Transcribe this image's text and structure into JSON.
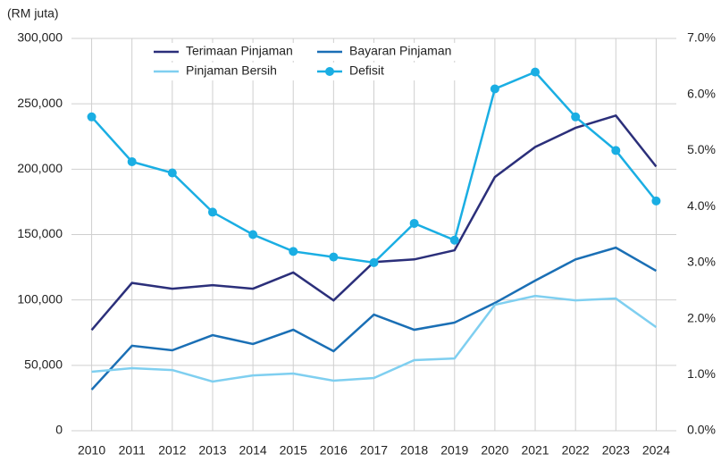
{
  "chart_data": {
    "type": "line",
    "y_label": "(RM juta)",
    "categories": [
      "2010",
      "2011",
      "2012",
      "2013",
      "2014",
      "2015",
      "2016",
      "2017",
      "2018",
      "2019",
      "2020",
      "2021",
      "2022",
      "2023",
      "2024"
    ],
    "ylim": [
      0,
      300000
    ],
    "yticks": [
      0,
      {
        "value": 50000,
        "label": "50,000"
      },
      {
        "value": 100000,
        "label": "100,000"
      },
      {
        "value": 150000,
        "label": "150,000"
      },
      {
        "value": 200000,
        "label": "200,000"
      },
      {
        "value": 250000,
        "label": "250,000"
      },
      {
        "value": 300000,
        "label": "300,000"
      }
    ],
    "y2lim": [
      0,
      7
    ],
    "y2ticks": [
      {
        "value": 0,
        "label": "0.0%"
      },
      {
        "value": 1,
        "label": "1.0%"
      },
      {
        "value": 2,
        "label": "2.0%"
      },
      {
        "value": 3,
        "label": "3.0%"
      },
      {
        "value": 4,
        "label": "4.0%"
      },
      {
        "value": 5,
        "label": "5.0%"
      },
      {
        "value": 6,
        "label": "6.0%"
      },
      {
        "value": 7,
        "label": "7.0%"
      }
    ],
    "grid": true,
    "legend": "top",
    "series": [
      {
        "name": "Terimaan Pinjaman",
        "color": "#2b2f7a",
        "values": [
          77000,
          113000,
          108600,
          111300,
          108600,
          121000,
          99700,
          129000,
          131000,
          138000,
          194000,
          217000,
          231600,
          241000,
          202000
        ]
      },
      {
        "name": "Bayaran Pinjaman",
        "color": "#1a6fb5",
        "values": [
          31400,
          65000,
          61500,
          73100,
          66300,
          77200,
          60800,
          88800,
          77200,
          82700,
          97700,
          114800,
          131000,
          140000,
          122300
        ]
      },
      {
        "name": "Pinjaman Bersih",
        "color": "#7fcff0",
        "values": [
          45100,
          47800,
          46400,
          37600,
          42300,
          43700,
          38300,
          40300,
          54000,
          55300,
          96300,
          103100,
          99700,
          101100,
          79200
        ]
      },
      {
        "name": "Defisit",
        "color": "#1aaee3",
        "axis": "y2",
        "markers": true,
        "values": [
          5.6,
          4.8,
          4.6,
          3.9,
          3.5,
          3.2,
          3.1,
          3.0,
          3.7,
          3.4,
          6.1,
          6.4,
          5.6,
          5.0,
          4.1
        ]
      }
    ]
  }
}
